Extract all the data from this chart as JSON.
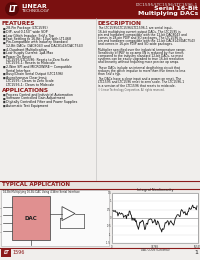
{
  "title_part": "LTC1595/LTC1596/LTC1596-1",
  "title_sub1": "Serial 16-Bit",
  "title_sub2": "Multiplying DACs",
  "bg_color": "#f0eeec",
  "header_bg": "#7a1010",
  "dark_red": "#8B1A1A",
  "features_title": "FEATURES",
  "features": [
    "28-Pin Package (LTC1595)",
    "DIP, and 0.150\" wide SOP",
    "Low Glitch Impulse: 5nV-s Typ",
    "Fast Settling to 16-Bit: 10μs with LT1468",
    "Pin-Compatible with Industry Standard",
    " 12-Bit DACs: DAC8043 and DAC8143/DAC7543",
    "4-Quadrant Multiplication",
    "Low Supply Current: 1μA Max",
    "Power On Reset",
    " LTC1595/LTC1596: Resets to Zero Scale",
    " LTC1596-1: Resets to Midscale",
    "2-Wire SPI and MICROWIRE™ Compatible",
    " Serial Interface",
    "Busy/Chain Serial Output (LTC1596)",
    "Asynchronous Clear Input",
    " LTC1595: Clears to Zero Scale",
    " LTC1596-1: Clears to Midscale"
  ],
  "applications_title": "APPLICATIONS",
  "applications": [
    "Process Control and Industrial Automation",
    "Software Controlled Gain Adjustment",
    "Digitally Controlled Filter and Power Supplies",
    "Automatic Test Equipment"
  ],
  "typical_app_title": "TYPICAL APPLICATION",
  "description_title": "DESCRIPTION",
  "desc_lines": [
    "The LTC1595/LTC1596/LTC1596-1 are serial input,",
    "16-bit multiplying current output DACs. The LTC1595 is",
    "pin and hardware compatible with the 12-bit DAC8043 and",
    "comes in 28-pin PDIP and SO packages. The LTC1596 is",
    "pin and hardware compatible with the 12-bit DAC8143/DAC7543",
    "and comes in 16-pin PDIP and SO-wide packages.",
    "",
    "Multiplier specified over the industrial temperature range.",
    "Sensitivity of IREF to op amp IIN is reduced by five times",
    "compared to the industry standard 12-bit DACs, so most",
    "systems can be easily upgraded to true 16-bit resolution",
    "and linearity without requiring more precise op amps.",
    "",
    "These DACs include an internal deglitching circuit that",
    "reduces the glitch impulse to more than five times to less",
    "than 5nV-s typ.",
    "",
    "The DACs have a clear input and a power-on reset. The",
    "LTC1595 and LTC1596 reset to zero scale. The LTC1596-1",
    "is a version of the LTC1596 that resets to midscale."
  ],
  "footer_page": "1",
  "inl_title": "Integral Nonlinearity",
  "circuit_title": "16-Bit Multiplying 16-Bit DAC Using 4-Wire Serial Interface"
}
